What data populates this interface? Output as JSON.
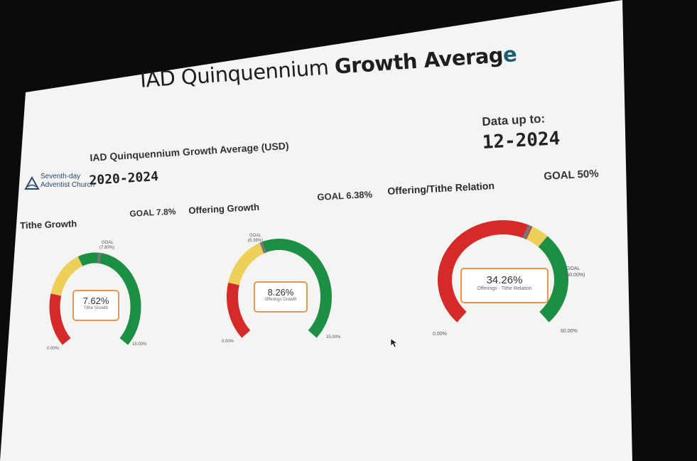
{
  "title": {
    "part1": "IAD Quinquennium ",
    "part2": "Growth Averag",
    "part3": "e"
  },
  "subtitle": "IAD Quinquennium Growth Average (USD)",
  "period": "2020-2024",
  "data_up_to": {
    "label": "Data up to:",
    "date": "12-2024"
  },
  "logo": {
    "line1": "Seventh-day",
    "line2": "Adventist Church"
  },
  "gauges": [
    {
      "label": "Tithe Growth",
      "goal_header": "GOAL 7.8%",
      "value": "7.62%",
      "caption": "Tithe Growth",
      "goal_small": "GOAL",
      "goal_small_value": "(7.80%)",
      "min_label": "0.00%",
      "max_label": "15.00%",
      "level": 7.62,
      "min": 0,
      "max": 15,
      "goal": 7.8
    },
    {
      "label": "Offering Growth",
      "goal_header": "GOAL 6.38%",
      "value": "8.26%",
      "caption": "Offerings Growth",
      "goal_small": "GOAL",
      "goal_small_value": "(6.38%)",
      "min_label": "0.00%",
      "max_label": "15.00%",
      "level": 8.26,
      "min": 0,
      "max": 15,
      "goal": 6.38
    },
    {
      "label": "Offering/Tithe Relation",
      "goal_header": "GOAL 50%",
      "value": "34.26%",
      "caption": "Offerings - Tithe Relation",
      "goal_small": "GOAL",
      "goal_small_value": "(50.00%)",
      "min_label": "0.00%",
      "max_label": "60.00%",
      "level": 34.26,
      "min": 0,
      "max": 60,
      "goal": 50
    }
  ],
  "colors": {
    "red": "#d42a2a",
    "yellow": "#ecd05a",
    "green": "#1c8f45",
    "box": "#e8964f",
    "needle": "#777777"
  }
}
